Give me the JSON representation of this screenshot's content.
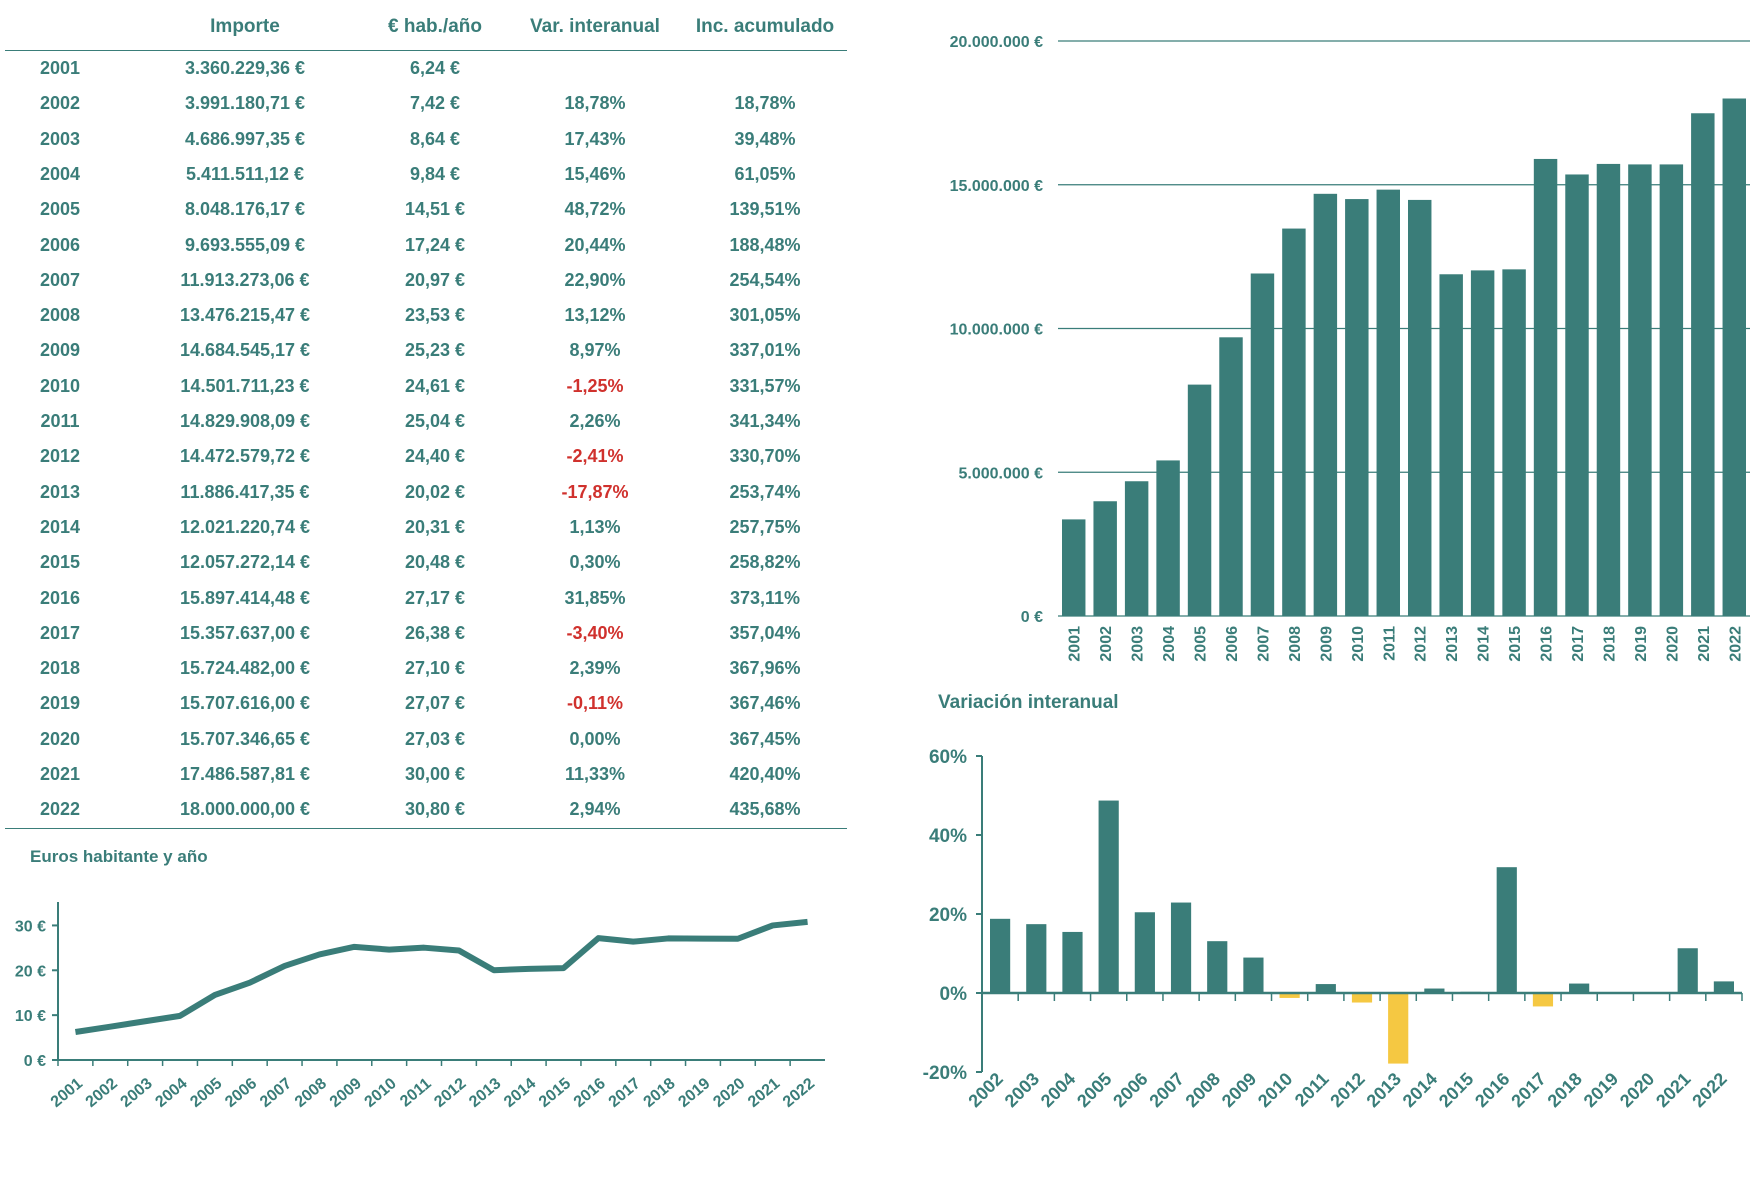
{
  "table": {
    "headers": [
      "",
      "Importe",
      "€ hab./año",
      "Var. interanual",
      "Inc. acumulado"
    ],
    "rows": [
      [
        "2001",
        "3.360.229,36 €",
        "6,24 €",
        "",
        ""
      ],
      [
        "2002",
        "3.991.180,71 €",
        "7,42 €",
        "18,78%",
        "18,78%"
      ],
      [
        "2003",
        "4.686.997,35 €",
        "8,64 €",
        "17,43%",
        "39,48%"
      ],
      [
        "2004",
        "5.411.511,12 €",
        "9,84 €",
        "15,46%",
        "61,05%"
      ],
      [
        "2005",
        "8.048.176,17 €",
        "14,51 €",
        "48,72%",
        "139,51%"
      ],
      [
        "2006",
        "9.693.555,09 €",
        "17,24 €",
        "20,44%",
        "188,48%"
      ],
      [
        "2007",
        "11.913.273,06 €",
        "20,97 €",
        "22,90%",
        "254,54%"
      ],
      [
        "2008",
        "13.476.215,47 €",
        "23,53 €",
        "13,12%",
        "301,05%"
      ],
      [
        "2009",
        "14.684.545,17 €",
        "25,23 €",
        "8,97%",
        "337,01%"
      ],
      [
        "2010",
        "14.501.711,23 €",
        "24,61 €",
        "-1,25%",
        "331,57%"
      ],
      [
        "2011",
        "14.829.908,09 €",
        "25,04 €",
        "2,26%",
        "341,34%"
      ],
      [
        "2012",
        "14.472.579,72 €",
        "24,40 €",
        "-2,41%",
        "330,70%"
      ],
      [
        "2013",
        "11.886.417,35 €",
        "20,02 €",
        "-17,87%",
        "253,74%"
      ],
      [
        "2014",
        "12.021.220,74 €",
        "20,31 €",
        "1,13%",
        "257,75%"
      ],
      [
        "2015",
        "12.057.272,14 €",
        "20,48 €",
        "0,30%",
        "258,82%"
      ],
      [
        "2016",
        "15.897.414,48 €",
        "27,17 €",
        "31,85%",
        "373,11%"
      ],
      [
        "2017",
        "15.357.637,00 €",
        "26,38 €",
        "-3,40%",
        "357,04%"
      ],
      [
        "2018",
        "15.724.482,00 €",
        "27,10 €",
        "2,39%",
        "367,96%"
      ],
      [
        "2019",
        "15.707.616,00 €",
        "27,07 €",
        "-0,11%",
        "367,46%"
      ],
      [
        "2020",
        "15.707.346,65 €",
        "27,03 €",
        "0,00%",
        "367,45%"
      ],
      [
        "2021",
        "17.486.587,81 €",
        "30,00 €",
        "11,33%",
        "420,40%"
      ],
      [
        "2022",
        "18.000.000,00 €",
        "30,80 €",
        "2,94%",
        "435,68%"
      ]
    ]
  },
  "colors": {
    "primary": "#3a7d79",
    "negative_text": "#d0312d",
    "negative_bar": "#f5c842"
  },
  "chart_data": [
    {
      "type": "bar",
      "title": "",
      "categories": [
        "2001",
        "2002",
        "2003",
        "2004",
        "2005",
        "2006",
        "2007",
        "2008",
        "2009",
        "2010",
        "2011",
        "2012",
        "2013",
        "2014",
        "2015",
        "2016",
        "2017",
        "2018",
        "2019",
        "2020",
        "2021",
        "2022"
      ],
      "values": [
        3360229.36,
        3991180.71,
        4686997.35,
        5411511.12,
        8048176.17,
        9693555.09,
        11913273.06,
        13476215.47,
        14684545.17,
        14501711.23,
        14829908.09,
        14472579.72,
        11886417.35,
        12021220.74,
        12057272.14,
        15897414.48,
        15357637.0,
        15724482.0,
        15707616.0,
        15707346.65,
        17486587.81,
        18000000.0
      ],
      "ylim": [
        0,
        20000000
      ],
      "yticks": [
        {
          "v": 0,
          "label": "0 €"
        },
        {
          "v": 5000000,
          "label": "5.000.000 €"
        },
        {
          "v": 10000000,
          "label": "10.000.000 €"
        },
        {
          "v": 15000000,
          "label": "15.000.000 €"
        },
        {
          "v": 20000000,
          "label": "20.000.000 €"
        }
      ],
      "grid": true
    },
    {
      "type": "line",
      "title": "Euros habitante y año",
      "categories": [
        "2001",
        "2002",
        "2003",
        "2004",
        "2005",
        "2006",
        "2007",
        "2008",
        "2009",
        "2010",
        "2011",
        "2012",
        "2013",
        "2014",
        "2015",
        "2016",
        "2017",
        "2018",
        "2019",
        "2020",
        "2021",
        "2022"
      ],
      "values": [
        6.24,
        7.42,
        8.64,
        9.84,
        14.51,
        17.24,
        20.97,
        23.53,
        25.23,
        24.61,
        25.04,
        24.4,
        20.02,
        20.31,
        20.48,
        27.17,
        26.38,
        27.1,
        27.07,
        27.03,
        30.0,
        30.8
      ],
      "ylim": [
        0,
        35
      ],
      "yticks": [
        {
          "v": 0,
          "label": "0 €"
        },
        {
          "v": 10,
          "label": "10 €"
        },
        {
          "v": 20,
          "label": "20 €"
        },
        {
          "v": 30,
          "label": "30 €"
        }
      ],
      "grid": false
    },
    {
      "type": "bar",
      "title": "Variación interanual",
      "categories": [
        "2002",
        "2003",
        "2004",
        "2005",
        "2006",
        "2007",
        "2008",
        "2009",
        "2010",
        "2011",
        "2012",
        "2013",
        "2014",
        "2015",
        "2016",
        "2017",
        "2018",
        "2019",
        "2020",
        "2021",
        "2022"
      ],
      "values": [
        18.78,
        17.43,
        15.46,
        48.72,
        20.44,
        22.9,
        13.12,
        8.97,
        -1.25,
        2.26,
        -2.41,
        -17.87,
        1.13,
        0.3,
        31.85,
        -3.4,
        2.39,
        -0.11,
        0.0,
        11.33,
        2.94
      ],
      "ylim": [
        -20,
        60
      ],
      "yticks": [
        {
          "v": -20,
          "label": "-20%"
        },
        {
          "v": 0,
          "label": "0%"
        },
        {
          "v": 20,
          "label": "20%"
        },
        {
          "v": 40,
          "label": "40%"
        },
        {
          "v": 60,
          "label": "60%"
        }
      ],
      "grid": false
    }
  ]
}
